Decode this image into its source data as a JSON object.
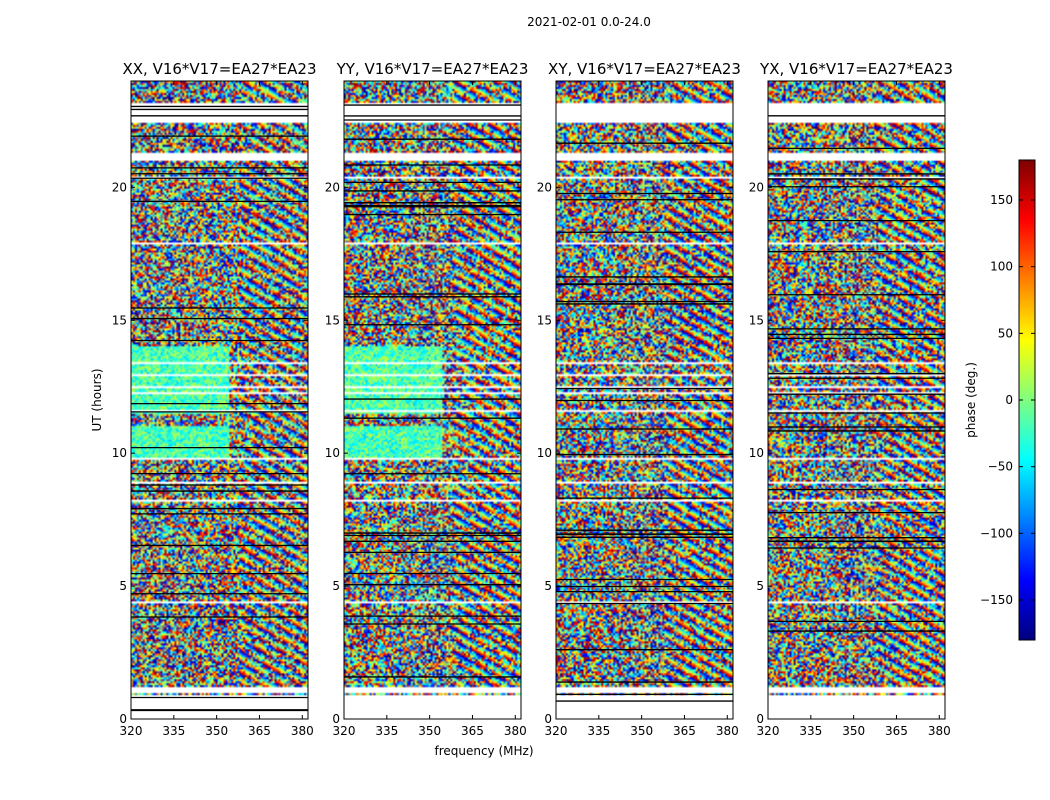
{
  "chart_data": {
    "type": "heatmap",
    "suptitle": "2021-02-01 0.0-24.0",
    "xlabel": "frequency (MHz)",
    "ylabel": "UT (hours)",
    "xlim": [
      320,
      382
    ],
    "ylim": [
      0,
      24
    ],
    "xticks": [
      320,
      335,
      350,
      365,
      380
    ],
    "yticks": [
      0,
      5,
      10,
      15,
      20
    ],
    "panels": [
      {
        "title": "XX, V16*V17=EA27*EA23",
        "pol": "XX"
      },
      {
        "title": "YY, V16*V17=EA27*EA23",
        "pol": "YY"
      },
      {
        "title": "XY, V16*V17=EA27*EA23",
        "pol": "XY"
      },
      {
        "title": "YX, V16*V17=EA27*EA23",
        "pol": "YX"
      }
    ],
    "value_description": "visibility phase per time-frequency cell; mostly noise with coherent fringes",
    "colorbar": {
      "label": "phase (deg.)",
      "colormap": "jet",
      "vmin": -180,
      "vmax": 180,
      "ticks": [
        -150,
        -100,
        -50,
        0,
        50,
        100,
        150
      ],
      "ticklabels": [
        "−150",
        "−100",
        "−50",
        "0",
        "50",
        "100",
        "150"
      ]
    },
    "blank_intervals_hours": [
      [
        0,
        0.9
      ],
      [
        1.0,
        1.2
      ],
      [
        21.0,
        21.3
      ],
      [
        22.4,
        23.2
      ]
    ],
    "colors": {
      "jet": [
        "#00007f",
        "#0000ff",
        "#007fff",
        "#00ffff",
        "#7fff7f",
        "#ffff00",
        "#ff7f00",
        "#ff0000",
        "#7f0000"
      ]
    }
  }
}
